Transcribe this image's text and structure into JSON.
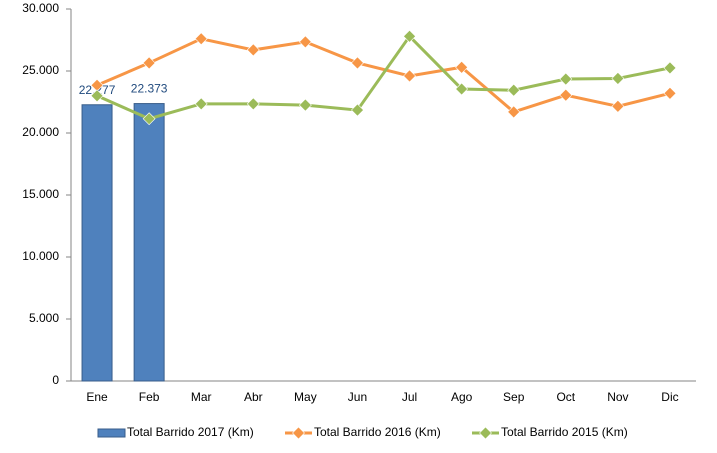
{
  "chart_data": {
    "type": "bar",
    "categories": [
      "Ene",
      "Feb",
      "Mar",
      "Abr",
      "May",
      "Jun",
      "Jul",
      "Ago",
      "Sep",
      "Oct",
      "Nov",
      "Dic"
    ],
    "series": [
      {
        "name": "Total Barrido 2017 (Km)",
        "type": "bar",
        "color": "#4f81bd",
        "values": [
          22277,
          22373,
          null,
          null,
          null,
          null,
          null,
          null,
          null,
          null,
          null,
          null
        ],
        "value_labels": [
          "22.277",
          "22.373",
          null,
          null,
          null,
          null,
          null,
          null,
          null,
          null,
          null,
          null
        ]
      },
      {
        "name": "Total Barrido 2016 (Km)",
        "type": "line",
        "color": "#f79646",
        "values": [
          23850,
          25650,
          27600,
          26700,
          27350,
          25650,
          24600,
          25300,
          21700,
          23050,
          22150,
          23200
        ]
      },
      {
        "name": "Total Barrido 2015 (Km)",
        "type": "line",
        "color": "#9bbb59",
        "values": [
          23000,
          21150,
          22350,
          22350,
          22250,
          21850,
          27800,
          23550,
          23450,
          24350,
          24400,
          25250
        ]
      }
    ],
    "ylim": [
      0,
      30000
    ],
    "yticks": [
      {
        "value": 0,
        "label": "0"
      },
      {
        "value": 5000,
        "label": "5.000"
      },
      {
        "value": 10000,
        "label": "10.000"
      },
      {
        "value": 15000,
        "label": "15.000"
      },
      {
        "value": 20000,
        "label": "20.000"
      },
      {
        "value": 25000,
        "label": "25.000"
      },
      {
        "value": 30000,
        "label": "30.000"
      }
    ],
    "grid": false,
    "legend": "bottom"
  }
}
